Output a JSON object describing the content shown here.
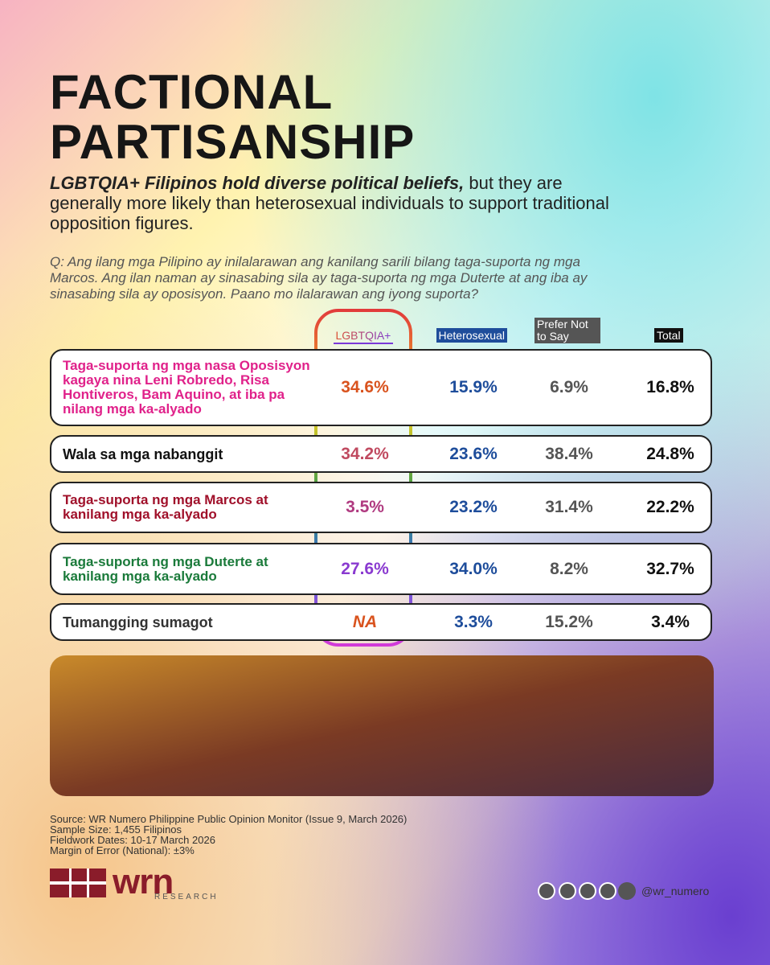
{
  "header": {
    "title_lines": [
      "FACTIONAL",
      "PARTISANSHIP"
    ],
    "subtitle": {
      "emphasis": "LGBTQIA+ Filipinos hold diverse political beliefs,",
      "text": " but they are generally more likely than heterosexual individuals to support traditional opposition figures."
    },
    "question": "Q: Ang ilang mga Pilipino ay inilalarawan ang kanilang sarili bilang taga-suporta ng mga Marcos. Ang ilan naman ay sinasabing sila ay taga-suporta ng mga Duterte at ang iba ay sinasabing sila ay oposisyon. Paano mo ilalarawan ang iyong suporta?"
  },
  "table": {
    "columns": [
      "LGBTQIA+",
      "Heterosexual",
      "Prefer Not to Say",
      "Total"
    ],
    "rows": [
      [
        "Taga-suporta ng mga nasa Oposisyon kagaya nina Leni Robredo, Risa Hontiveros, Bam Aquino, at iba pa nilang mga ka-alyado",
        "34.6%",
        "15.9%",
        "6.9%",
        "16.8%"
      ],
      [
        "Wala sa mga nabanggit",
        "34.2%",
        "23.6%",
        "38.4%",
        "24.8%"
      ],
      [
        "Taga-suporta ng mga Marcos at kanilang mga ka-alyado",
        "3.5%",
        "23.2%",
        "31.4%",
        "22.2%"
      ],
      [
        "Taga-suporta ng mga Duterte at kanilang mga ka-alyado",
        "27.6%",
        "34.0%",
        "8.2%",
        "32.7%"
      ],
      [
        "Tumangging sumagot",
        "NA",
        "3.3%",
        "15.2%",
        "3.4%"
      ]
    ]
  },
  "footer": {
    "notes": [
      "Source: WR Numero Philippine Public Opinion Monitor (Issue 9, March 2026)",
      "Sample Size: 1,455 Filipinos",
      "Fieldwork Dates: 10-17 March 2026",
      "Margin of Error (National): ±3%"
    ],
    "logo": "wrn",
    "logo_sub": "RESEARCH",
    "handle": "@wr_numero"
  }
}
